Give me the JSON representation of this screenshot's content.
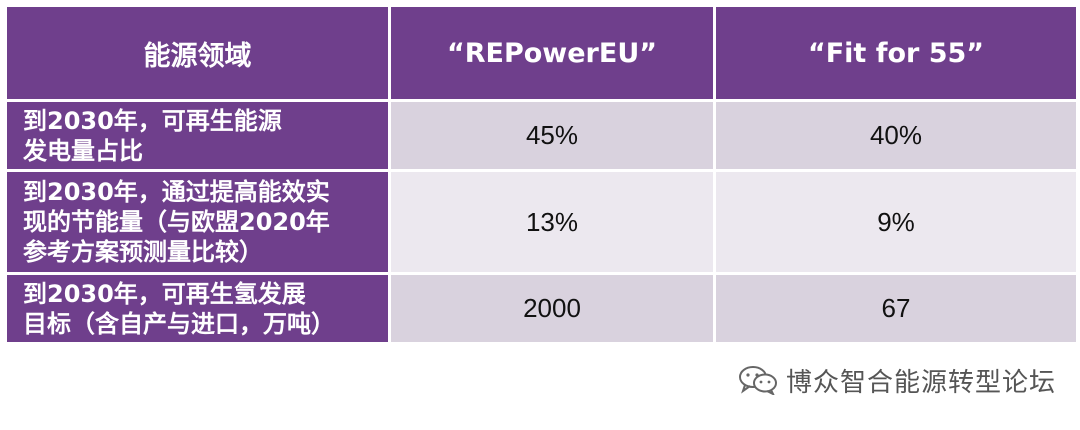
{
  "table": {
    "headers": [
      "能源领域",
      "“REPowerEU”",
      "“Fit for 55”"
    ],
    "rows": [
      {
        "label": "到2030年，可再生能源\n发电量占比",
        "repowereu": "45%",
        "fit_for_55": "40%"
      },
      {
        "label": "到2030年，通过提高能效实\n现的节能量（与欧盟2020年\n参考方案预测量比较）",
        "repowereu": "13%",
        "fit_for_55": "9%"
      },
      {
        "label": "到2030年，可再生氢发展\n目标（含自产与进口，万吨）",
        "repowereu": "2000",
        "fit_for_55": "67"
      }
    ]
  },
  "watermark": {
    "text": "博众智合能源转型论坛",
    "icon": "wechat-icon"
  },
  "colors": {
    "header_bg": "#6f3f8c",
    "cell_dark": "#d9d2de",
    "cell_light": "#ece8ef"
  }
}
